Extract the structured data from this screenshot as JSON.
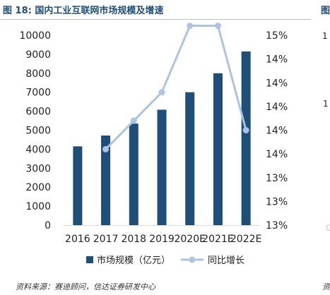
{
  "header": {
    "title": "图 18:  国内工业互联网市场规模及增速",
    "right_cut_title": "图",
    "right_cut_digit_top": "1",
    "right_cut_digit_mid": "1",
    "right_cut_zero": "0"
  },
  "footer": {
    "source": "资料来源：赛迪顾问，信达证券研发中心",
    "right_cut_source": "资"
  },
  "colors": {
    "bar": "#1f4e79",
    "line": "#adc3e3",
    "title": "#1f4e79"
  },
  "chart_data": {
    "type": "bar",
    "categories": [
      "2016",
      "2017",
      "2018",
      "2019",
      "2020E",
      "2021E",
      "2022E"
    ],
    "series": [
      {
        "name": "市场规模（亿元）",
        "kind": "bar",
        "axis": "left",
        "values": [
          4150,
          4720,
          5350,
          6080,
          7000,
          8000,
          9150
        ]
      },
      {
        "name": "同比增长",
        "kind": "line",
        "axis": "right",
        "values": [
          null,
          13.8,
          14.1,
          14.4,
          15.1,
          15.1,
          14.0
        ]
      }
    ],
    "y_left": {
      "min": 0,
      "max": 10000,
      "step": 1000,
      "tick_labels": [
        "0",
        "1000",
        "2000",
        "3000",
        "4000",
        "5000",
        "6000",
        "7000",
        "8000",
        "9000",
        "10000"
      ]
    },
    "y_right": {
      "min": 13,
      "max": 15,
      "unit": "%",
      "tick_labels": [
        "13%",
        "13%",
        "13%",
        "14%",
        "14%",
        "14%",
        "14%",
        "14%",
        "15%"
      ]
    },
    "legend_placement": "bottom",
    "grid": false
  }
}
